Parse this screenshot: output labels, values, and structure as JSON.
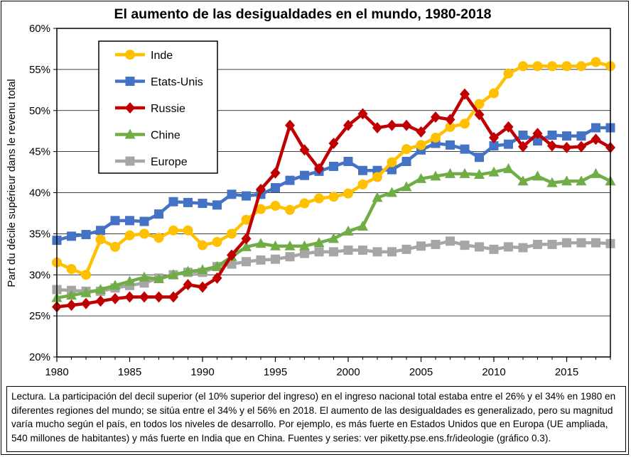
{
  "chart_data": {
    "type": "line",
    "title": "El aumento de las desigualdades en el mundo, 1980-2018",
    "xlabel": "",
    "ylabel": "Part du décile supérieur dans le revenu total",
    "xlim": [
      1980,
      2018
    ],
    "ylim": [
      0.2,
      0.6
    ],
    "x_ticks": [
      1980,
      1985,
      1990,
      1995,
      2000,
      2005,
      2010,
      2015
    ],
    "x_tick_labels": [
      "1980",
      "1985",
      "1990",
      "1995",
      "2000",
      "2005",
      "2010",
      "2015"
    ],
    "y_ticks": [
      0.2,
      0.25,
      0.3,
      0.35,
      0.4,
      0.45,
      0.5,
      0.55,
      0.6
    ],
    "y_tick_labels": [
      "20%",
      "25%",
      "30%",
      "35%",
      "40%",
      "45%",
      "50%",
      "55%",
      "60%"
    ],
    "grid": "horizontal",
    "legend_position": "top-left",
    "x": [
      1980,
      1981,
      1982,
      1983,
      1984,
      1985,
      1986,
      1987,
      1988,
      1989,
      1990,
      1991,
      1992,
      1993,
      1994,
      1995,
      1996,
      1997,
      1998,
      1999,
      2000,
      2001,
      2002,
      2003,
      2004,
      2005,
      2006,
      2007,
      2008,
      2009,
      2010,
      2011,
      2012,
      2013,
      2014,
      2015,
      2016,
      2017,
      2018
    ],
    "series": [
      {
        "name": "Inde",
        "color": "#FFC000",
        "marker": "circle",
        "values": [
          0.315,
          0.307,
          0.3,
          0.343,
          0.334,
          0.348,
          0.35,
          0.345,
          0.354,
          0.354,
          0.336,
          0.34,
          0.35,
          0.367,
          0.38,
          0.384,
          0.379,
          0.387,
          0.393,
          0.395,
          0.399,
          0.41,
          0.419,
          0.437,
          0.453,
          0.458,
          0.467,
          0.48,
          0.484,
          0.508,
          0.521,
          0.545,
          0.554,
          0.554,
          0.554,
          0.554,
          0.554,
          0.559,
          0.554
        ]
      },
      {
        "name": "Etats-Unis",
        "color": "#4472C4",
        "marker": "square",
        "values": [
          0.342,
          0.347,
          0.349,
          0.354,
          0.366,
          0.366,
          0.365,
          0.374,
          0.389,
          0.388,
          0.387,
          0.385,
          0.398,
          0.396,
          0.398,
          0.406,
          0.415,
          0.421,
          0.426,
          0.432,
          0.438,
          0.427,
          0.427,
          0.428,
          0.438,
          0.452,
          0.46,
          0.458,
          0.453,
          0.443,
          0.457,
          0.459,
          0.47,
          0.463,
          0.47,
          0.469,
          0.469,
          0.479,
          0.479
        ]
      },
      {
        "name": "Russie",
        "color": "#C00000",
        "marker": "diamond",
        "values": [
          0.261,
          0.263,
          0.265,
          0.268,
          0.271,
          0.273,
          0.273,
          0.273,
          0.273,
          0.288,
          0.285,
          0.296,
          0.324,
          0.344,
          0.404,
          0.424,
          0.482,
          0.452,
          0.429,
          0.46,
          0.482,
          0.496,
          0.479,
          0.482,
          0.482,
          0.474,
          0.492,
          0.489,
          0.52,
          0.495,
          0.467,
          0.48,
          0.456,
          0.472,
          0.457,
          0.455,
          0.456,
          0.465,
          0.455
        ]
      },
      {
        "name": "Chine",
        "color": "#70AD47",
        "marker": "triangle",
        "values": [
          0.272,
          0.275,
          0.278,
          0.282,
          0.287,
          0.292,
          0.297,
          0.295,
          0.3,
          0.304,
          0.306,
          0.31,
          0.322,
          0.334,
          0.338,
          0.335,
          0.335,
          0.335,
          0.339,
          0.344,
          0.353,
          0.359,
          0.394,
          0.4,
          0.407,
          0.417,
          0.42,
          0.423,
          0.423,
          0.422,
          0.425,
          0.429,
          0.414,
          0.42,
          0.412,
          0.414,
          0.414,
          0.423,
          0.414
        ]
      },
      {
        "name": "Europe",
        "color": "#A6A6A6",
        "marker": "square",
        "values": [
          0.282,
          0.281,
          0.28,
          0.28,
          0.284,
          0.287,
          0.29,
          0.296,
          0.3,
          0.303,
          0.303,
          0.31,
          0.313,
          0.316,
          0.318,
          0.319,
          0.322,
          0.326,
          0.328,
          0.328,
          0.33,
          0.33,
          0.328,
          0.328,
          0.331,
          0.335,
          0.337,
          0.341,
          0.336,
          0.334,
          0.331,
          0.334,
          0.333,
          0.337,
          0.337,
          0.339,
          0.339,
          0.339,
          0.338
        ]
      }
    ]
  },
  "caption": "Lectura. La participación del decil superior (el 10% superior del ingreso) en el ingreso nacional total estaba entre el 26% y el 34% en 1980 en diferentes regiones del mundo; se sitúa entre el 34% y el 56% en 2018. El aumento de las desigualdades es generalizado, pero su magnitud varía mucho según el país, en todos los niveles de desarrollo. Por ejemplo, es más fuerte en Estados Unidos que en Europa (UE ampliada, 540 millones de habitantes) y más fuerte en India que en China. Fuentes y series: ver piketty.pse.ens.fr/ideologie (gráfico 0.3)."
}
